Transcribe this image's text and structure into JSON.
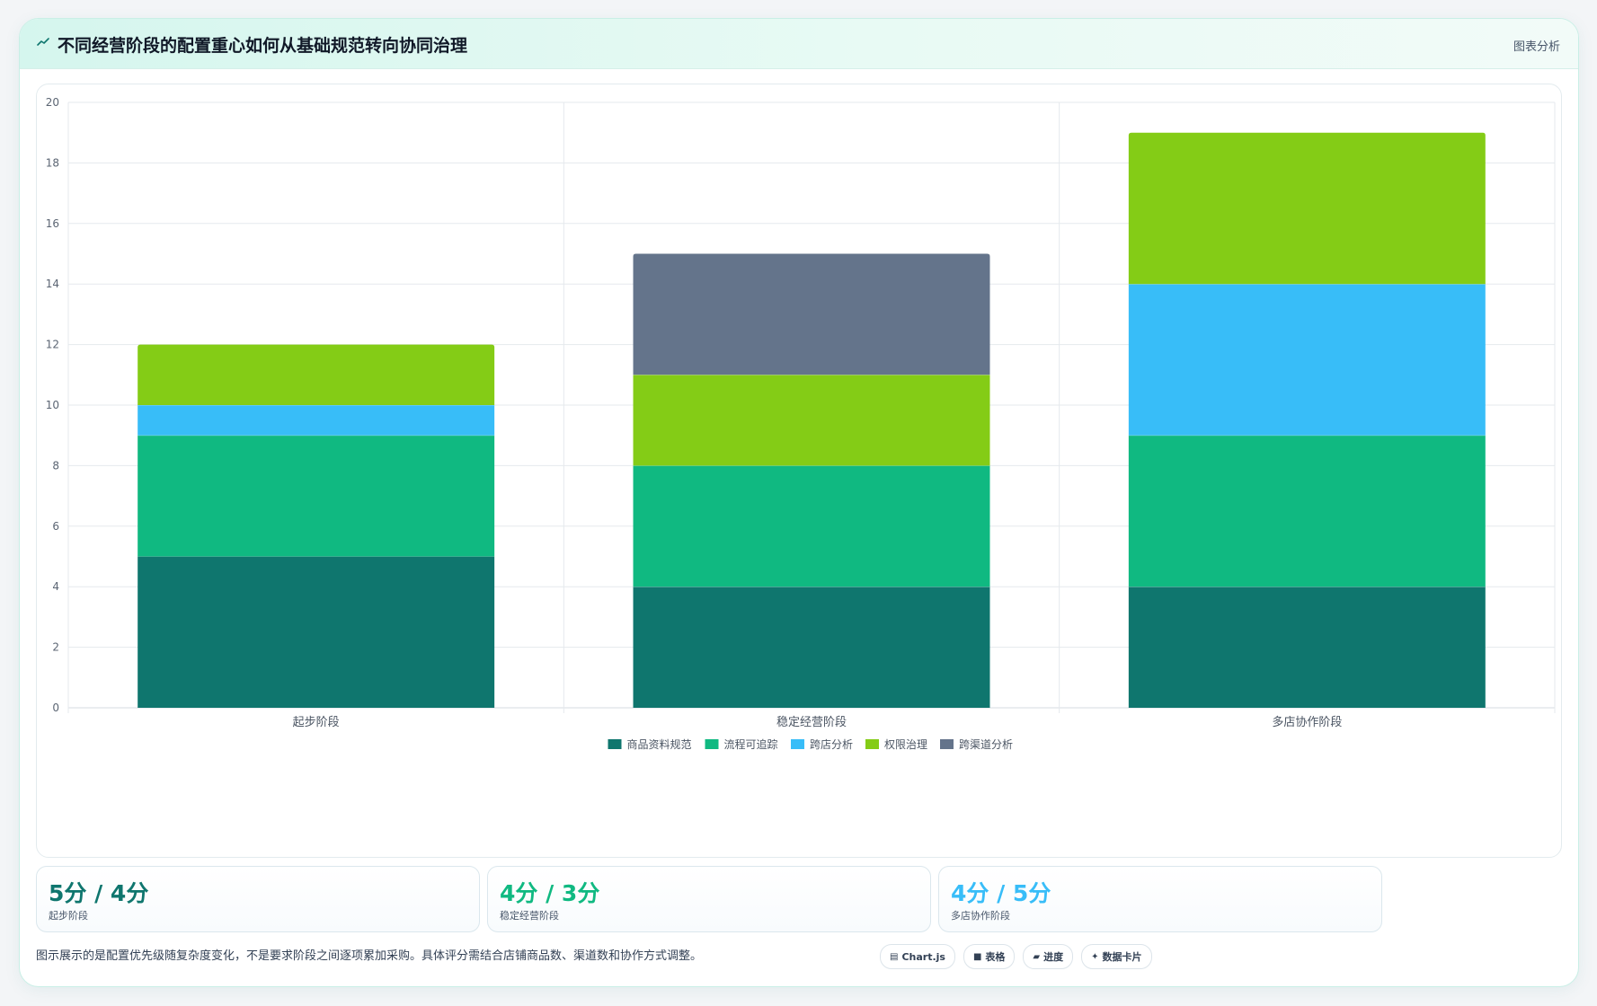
{
  "header": {
    "title": "不同经营阶段的配置重心如何从基础规范转向协同治理",
    "link_label": "图表分析"
  },
  "colors": {
    "accent": "#0f766e",
    "series": [
      "#0f766e",
      "#10b981",
      "#38bdf8",
      "#84cc16",
      "#64748b"
    ]
  },
  "chart_data": {
    "type": "bar",
    "stacked": true,
    "categories": [
      "起步阶段",
      "稳定经营阶段",
      "多店协作阶段"
    ],
    "series": [
      {
        "name": "商品资料规范",
        "values": [
          5,
          4,
          4
        ],
        "color": "#0f766e"
      },
      {
        "name": "流程可追踪",
        "values": [
          4,
          4,
          5
        ],
        "color": "#10b981"
      },
      {
        "name": "跨店分析",
        "values": [
          1,
          0,
          5
        ],
        "color": "#38bdf8"
      },
      {
        "name": "权限治理",
        "values": [
          2,
          3,
          5
        ],
        "color": "#84cc16"
      },
      {
        "name": "跨渠道分析",
        "values": [
          0,
          4,
          0
        ],
        "color": "#64748b"
      }
    ],
    "ylim": [
      0,
      20
    ],
    "yticks": [
      0,
      2,
      4,
      6,
      8,
      10,
      12,
      14,
      16,
      18,
      20
    ],
    "grid": true,
    "legend_position": "bottom"
  },
  "stats": [
    {
      "value": "5分 / 4分",
      "label": "起步阶段",
      "color": "#0f766e"
    },
    {
      "value": "4分 / 3分",
      "label": "稳定经营阶段",
      "color": "#10b981"
    },
    {
      "value": "4分 / 5分",
      "label": "多店协作阶段",
      "color": "#38bdf8"
    }
  ],
  "footnote": "图示展示的是配置优先级随复杂度变化，不是要求阶段之间逐项累加采购。具体评分需结合店铺商品数、渠道数和协作方式调整。",
  "chips": [
    {
      "icon": "chart-icon",
      "glyph": "▤",
      "label": "Chart.js"
    },
    {
      "icon": "table-icon",
      "glyph": "■",
      "label": "表格"
    },
    {
      "icon": "progress-icon",
      "glyph": "▰",
      "label": "进度"
    },
    {
      "icon": "card-icon",
      "glyph": "✦",
      "label": "数据卡片"
    }
  ]
}
